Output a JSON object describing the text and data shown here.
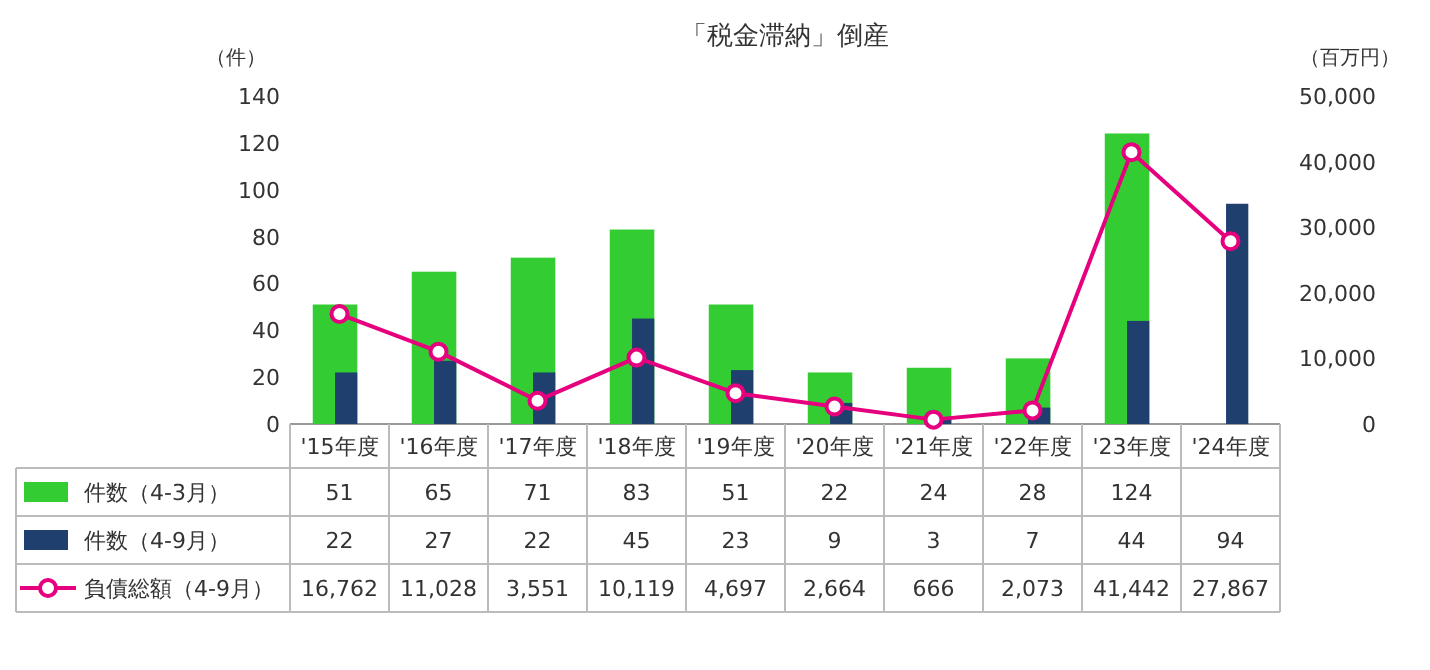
{
  "chart_data": {
    "type": "bar",
    "title": "「税金滞納」倒産",
    "ylabel": "（件）",
    "y2label": "（百万円）",
    "categories": [
      "'15年度",
      "'16年度",
      "'17年度",
      "'18年度",
      "'19年度",
      "'20年度",
      "'21年度",
      "'22年度",
      "'23年度",
      "'24年度"
    ],
    "series": [
      {
        "name": "件数（4-3月）",
        "color": "#33cc33",
        "values": [
          51,
          65,
          71,
          83,
          51,
          22,
          24,
          28,
          124,
          null
        ],
        "value_labels": [
          "51",
          "65",
          "71",
          "83",
          "51",
          "22",
          "24",
          "28",
          "124",
          null
        ]
      },
      {
        "name": "件数（4-9月）",
        "color": "#1f3f6f",
        "values": [
          22,
          27,
          22,
          45,
          23,
          9,
          3,
          7,
          44,
          94
        ],
        "value_labels": [
          "22",
          "27",
          "22",
          "45",
          "23",
          "9",
          "3",
          "7",
          "44",
          "94"
        ]
      },
      {
        "name": "負債総額（4-9月）",
        "type": "line",
        "axis": "y2",
        "color": "#e6007e",
        "marker": "circle",
        "values": [
          16762,
          11028,
          3551,
          10119,
          4697,
          2664,
          666,
          2073,
          41442,
          27867
        ],
        "value_labels": [
          "16,762",
          "11,028",
          "3,551",
          "10,119",
          "4,697",
          "2,664",
          "666",
          "2,073",
          "41,442",
          "27,867"
        ]
      }
    ],
    "ylim": [
      0,
      140
    ],
    "yticks": [
      0,
      20,
      40,
      60,
      80,
      100,
      120,
      140
    ],
    "y2lim": [
      0,
      50000
    ],
    "y2ticks": [
      0,
      {
        "value": 10000,
        "label": "10,000"
      },
      {
        "value": 20000,
        "label": "20,000"
      },
      {
        "value": 30000,
        "label": "30,000"
      },
      {
        "value": 40000,
        "label": "40,000"
      },
      {
        "value": 50000,
        "label": "50,000"
      }
    ],
    "legend": "bottom"
  }
}
